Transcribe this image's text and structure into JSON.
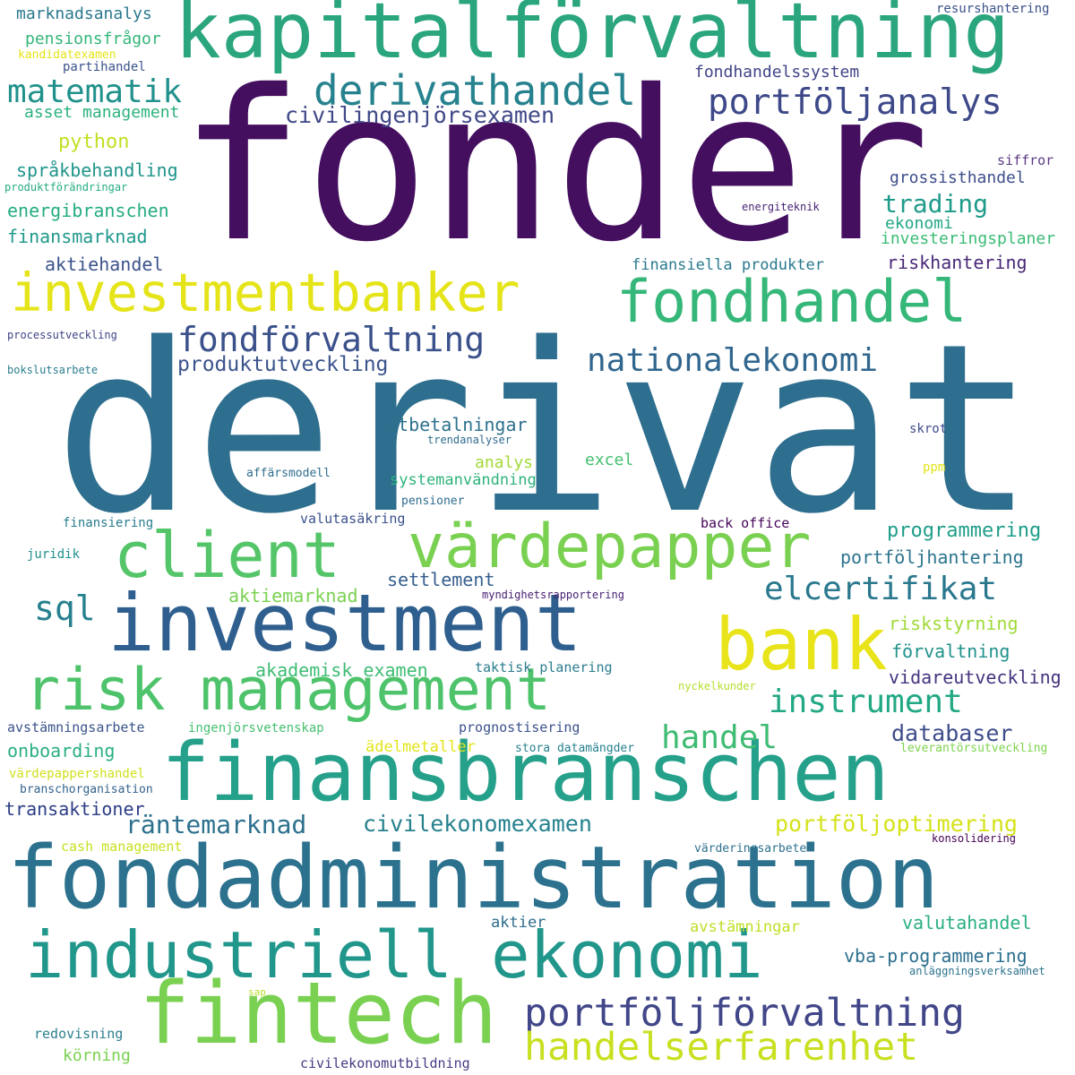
{
  "words": [
    {
      "text": "derivat",
      "color": "#2e6e8e"
    },
    {
      "text": "fonder",
      "color": "#440f5f"
    },
    {
      "text": "kapitalförvaltning",
      "color": "#2aa57e"
    },
    {
      "text": "fondadministration",
      "color": "#2c728e"
    },
    {
      "text": "finansbranschen",
      "color": "#25a08a"
    },
    {
      "text": "investment",
      "color": "#2f5f8e"
    },
    {
      "text": "risk management",
      "color": "#4ec36b"
    },
    {
      "text": "industriell ekonomi",
      "color": "#21968b"
    },
    {
      "text": "fintech",
      "color": "#7ad151"
    },
    {
      "text": "värdepapper",
      "color": "#7ad151"
    },
    {
      "text": "client",
      "color": "#54c568"
    },
    {
      "text": "investmentbanker",
      "color": "#e5e419"
    },
    {
      "text": "fondhandel",
      "color": "#35b779"
    },
    {
      "text": "bank",
      "color": "#e8e419"
    },
    {
      "text": "derivathandel",
      "color": "#26828e"
    },
    {
      "text": "portföljanalys",
      "color": "#3e4989"
    },
    {
      "text": "portföljförvaltning",
      "color": "#404688"
    },
    {
      "text": "handelserfarenhet",
      "color": "#c8e020"
    },
    {
      "text": "fondförvaltning",
      "color": "#3b518b"
    },
    {
      "text": "nationalekonomi",
      "color": "#31668e"
    },
    {
      "text": "matematik",
      "color": "#21918c"
    },
    {
      "text": "elcertifikat",
      "color": "#2a788e"
    },
    {
      "text": "instrument",
      "color": "#22a884"
    },
    {
      "text": "handel",
      "color": "#3fbc73"
    },
    {
      "text": "civilingenjörsexamen",
      "color": "#3f4788"
    },
    {
      "text": "sql",
      "color": "#27808e"
    },
    {
      "text": "räntemarknad",
      "color": "#2d708e"
    },
    {
      "text": "civilekonomexamen",
      "color": "#26818e"
    },
    {
      "text": "portföljoptimering",
      "color": "#d5e21a"
    },
    {
      "text": "trading",
      "color": "#1e9b8a"
    },
    {
      "text": "databaser",
      "color": "#3d4d8a"
    },
    {
      "text": "produktutveckling",
      "color": "#3a548c"
    },
    {
      "text": "fondhandelssystem",
      "color": "#414487"
    },
    {
      "text": "riskhantering",
      "color": "#482878"
    },
    {
      "text": "programmering",
      "color": "#1f9e89"
    },
    {
      "text": "portföljhantering",
      "color": "#2b748e"
    },
    {
      "text": "settlement",
      "color": "#355f8d"
    },
    {
      "text": "aktiemarknad",
      "color": "#7ad151"
    },
    {
      "text": "riskstyrning",
      "color": "#a0da39"
    },
    {
      "text": "förvaltning",
      "color": "#20928c"
    },
    {
      "text": "vidareutveckling",
      "color": "#46337f"
    },
    {
      "text": "valutahandel",
      "color": "#29af7f"
    },
    {
      "text": "vba-programmering",
      "color": "#2d708e"
    },
    {
      "text": "akademisk examen",
      "color": "#3dbc74"
    },
    {
      "text": "utbetalningar",
      "color": "#2d718e"
    },
    {
      "text": "onboarding",
      "color": "#2ab07f"
    },
    {
      "text": "transaktioner",
      "color": "#2c3d86"
    },
    {
      "text": "avstämningsarbete",
      "color": "#3a538b"
    },
    {
      "text": "energibranschen",
      "color": "#25ac82"
    },
    {
      "text": "finansmarknad",
      "color": "#1f988b"
    },
    {
      "text": "aktiehandel",
      "color": "#3b528b"
    },
    {
      "text": "språkbehandling",
      "color": "#1f958b"
    },
    {
      "text": "pensionsfrågor",
      "color": "#34b679"
    },
    {
      "text": "asset management",
      "color": "#2db27d"
    },
    {
      "text": "python",
      "color": "#c2df23"
    },
    {
      "text": "marknadsanalys",
      "color": "#2a788e"
    },
    {
      "text": "grossisthandel",
      "color": "#3d4e8a"
    },
    {
      "text": "siffror",
      "color": "#5c3b85"
    },
    {
      "text": "ekonomi",
      "color": "#22a785"
    },
    {
      "text": "investeringsplaner",
      "color": "#3bbb75"
    },
    {
      "text": "finansiella produkter",
      "color": "#29798e"
    },
    {
      "text": "analys",
      "color": "#a2da37"
    },
    {
      "text": "excel",
      "color": "#44bf70"
    },
    {
      "text": "systemanvändning",
      "color": "#2eb37c"
    },
    {
      "text": "valutasäkring",
      "color": "#3b518b"
    },
    {
      "text": "back office",
      "color": "#450559"
    },
    {
      "text": "cash management",
      "color": "#c8e020"
    },
    {
      "text": "ädelmetaller",
      "color": "#e2e418"
    },
    {
      "text": "prognostisering",
      "color": "#3b528b"
    },
    {
      "text": "taktisk planering",
      "color": "#2c7d8e"
    },
    {
      "text": "avstämningar",
      "color": "#bddf26"
    },
    {
      "text": "aktier",
      "color": "#2e6d8e"
    },
    {
      "text": "redovisning",
      "color": "#2c7f8e"
    },
    {
      "text": "körning",
      "color": "#7ad151"
    },
    {
      "text": "civilekonomutbildning",
      "color": "#443a83"
    },
    {
      "text": "kandidatexamen",
      "color": "#e5e419"
    },
    {
      "text": "partihandel",
      "color": "#3b528b"
    },
    {
      "text": "resurshantering",
      "color": "#3b518b"
    },
    {
      "text": "produktförändringar",
      "color": "#25ab82"
    },
    {
      "text": "energiteknik",
      "color": "#482475"
    },
    {
      "text": "processutveckling",
      "color": "#404387"
    },
    {
      "text": "bokslutsarbete",
      "color": "#2c7e8e"
    },
    {
      "text": "trendanalyser",
      "color": "#2f6c8e"
    },
    {
      "text": "skrot",
      "color": "#3e4c8a"
    },
    {
      "text": "affärsmodell",
      "color": "#2e6e8e"
    },
    {
      "text": "ppm",
      "color": "#e5e419"
    },
    {
      "text": "pensioner",
      "color": "#2e6c8e"
    },
    {
      "text": "finansiering",
      "color": "#287d8e"
    },
    {
      "text": "juridik",
      "color": "#21908d"
    },
    {
      "text": "myndighetsrapportering",
      "color": "#482173"
    },
    {
      "text": "nyckelkunder",
      "color": "#b5de2b"
    },
    {
      "text": "ingenjörsvetenskap",
      "color": "#45bf70"
    },
    {
      "text": "stora datamängder",
      "color": "#27808e"
    },
    {
      "text": "leverantörsutveckling",
      "color": "#7fd34e"
    },
    {
      "text": "värdepappershandel",
      "color": "#d0e11c"
    },
    {
      "text": "branschorganisation",
      "color": "#33638d"
    },
    {
      "text": "konsolidering",
      "color": "#440154"
    },
    {
      "text": "värderingsarbete",
      "color": "#2d708e"
    },
    {
      "text": "anläggningsverksamhet",
      "color": "#2c728e"
    },
    {
      "text": "sap",
      "color": "#b8de29"
    }
  ]
}
